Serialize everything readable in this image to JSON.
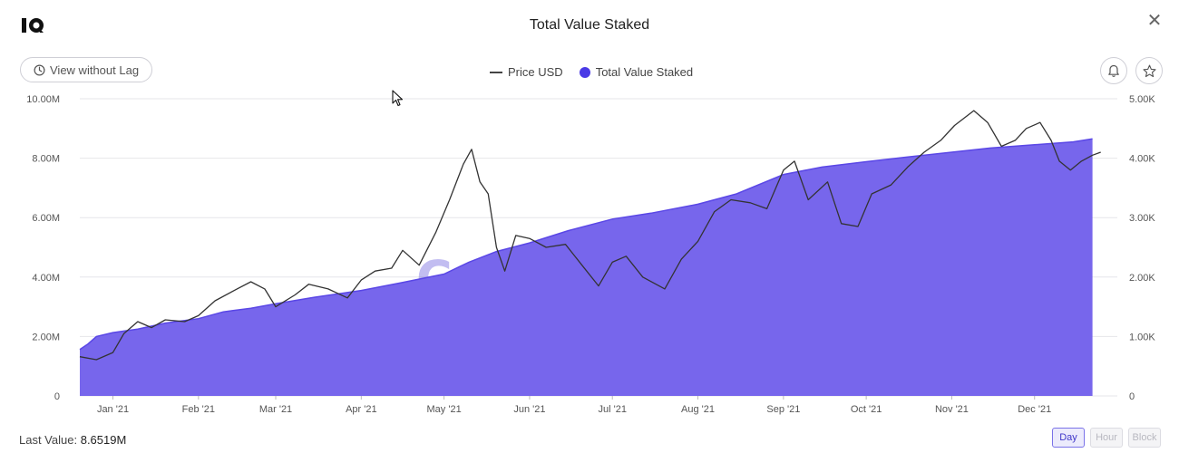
{
  "header": {
    "title": "Total Value Staked",
    "close_symbol": "✕"
  },
  "toolbar": {
    "lag_button": "View without Lag"
  },
  "legend": {
    "price_label": "Price USD",
    "tvs_label": "Total Value Staked"
  },
  "footer": {
    "last_value_label": "Last Value:",
    "last_value": "8.6519M"
  },
  "granularity": [
    "Day",
    "Hour",
    "Block"
  ],
  "granularity_selected": "Day",
  "watermark": "CryptoQuant",
  "colors": {
    "area": "#7766ec",
    "area_line": "#5a47e6",
    "price_line": "#333333",
    "grid": "#e6e6ea",
    "accent": "#4a3ae6"
  },
  "icons": {
    "logo": "cryptoquant-logo-icon",
    "clock": "clock-icon",
    "bell": "bell-icon",
    "star": "star-icon",
    "close": "close-icon"
  },
  "chart_data": {
    "type": "area",
    "title": "Total Value Staked",
    "x_range": [
      "2020-12-20",
      "2021-12-31"
    ],
    "x_ticks": [
      "Jan '21",
      "Feb '21",
      "Mar '21",
      "Apr '21",
      "May '21",
      "Jun '21",
      "Jul '21",
      "Aug '21",
      "Sep '21",
      "Oct '21",
      "Nov '21",
      "Dec '21"
    ],
    "y_left": {
      "label": "Total Value Staked",
      "min": 0,
      "max": 10000000,
      "ticks": [
        "0",
        "2.00M",
        "4.00M",
        "6.00M",
        "8.00M",
        "10.00M"
      ]
    },
    "y_right": {
      "label": "Price USD",
      "min": 0,
      "max": 5000,
      "ticks": [
        "0",
        "1.00K",
        "2.00K",
        "3.00K",
        "4.00K",
        "5.00K"
      ]
    },
    "series": [
      {
        "name": "Total Value Staked",
        "type": "area",
        "axis": "left",
        "points": [
          [
            "2020-12-20",
            1560000
          ],
          [
            "2020-12-23",
            1750000
          ],
          [
            "2020-12-26",
            2000000
          ],
          [
            "2021-01-01",
            2130000
          ],
          [
            "2021-01-10",
            2250000
          ],
          [
            "2021-01-20",
            2450000
          ],
          [
            "2021-02-01",
            2600000
          ],
          [
            "2021-02-10",
            2830000
          ],
          [
            "2021-02-20",
            2950000
          ],
          [
            "2021-03-01",
            3100000
          ],
          [
            "2021-03-15",
            3320000
          ],
          [
            "2021-04-01",
            3550000
          ],
          [
            "2021-04-15",
            3800000
          ],
          [
            "2021-05-01",
            4100000
          ],
          [
            "2021-05-10",
            4500000
          ],
          [
            "2021-05-20",
            4860000
          ],
          [
            "2021-06-01",
            5150000
          ],
          [
            "2021-06-15",
            5560000
          ],
          [
            "2021-07-01",
            5950000
          ],
          [
            "2021-07-15",
            6150000
          ],
          [
            "2021-08-01",
            6450000
          ],
          [
            "2021-08-15",
            6800000
          ],
          [
            "2021-09-01",
            7450000
          ],
          [
            "2021-09-15",
            7700000
          ],
          [
            "2021-10-01",
            7880000
          ],
          [
            "2021-10-15",
            8030000
          ],
          [
            "2021-11-01",
            8200000
          ],
          [
            "2021-11-15",
            8340000
          ],
          [
            "2021-12-01",
            8450000
          ],
          [
            "2021-12-15",
            8550000
          ],
          [
            "2021-12-22",
            8650000
          ]
        ]
      },
      {
        "name": "Price USD",
        "type": "line",
        "axis": "right",
        "points": [
          [
            "2020-12-20",
            660
          ],
          [
            "2020-12-26",
            610
          ],
          [
            "2021-01-01",
            730
          ],
          [
            "2021-01-05",
            1050
          ],
          [
            "2021-01-10",
            1250
          ],
          [
            "2021-01-15",
            1150
          ],
          [
            "2021-01-20",
            1280
          ],
          [
            "2021-01-27",
            1250
          ],
          [
            "2021-02-01",
            1350
          ],
          [
            "2021-02-07",
            1600
          ],
          [
            "2021-02-15",
            1800
          ],
          [
            "2021-02-20",
            1920
          ],
          [
            "2021-02-25",
            1800
          ],
          [
            "2021-03-01",
            1500
          ],
          [
            "2021-03-08",
            1700
          ],
          [
            "2021-03-13",
            1880
          ],
          [
            "2021-03-20",
            1800
          ],
          [
            "2021-03-27",
            1650
          ],
          [
            "2021-04-01",
            1950
          ],
          [
            "2021-04-06",
            2100
          ],
          [
            "2021-04-12",
            2150
          ],
          [
            "2021-04-16",
            2450
          ],
          [
            "2021-04-22",
            2200
          ],
          [
            "2021-04-28",
            2750
          ],
          [
            "2021-05-03",
            3300
          ],
          [
            "2021-05-08",
            3900
          ],
          [
            "2021-05-11",
            4150
          ],
          [
            "2021-05-14",
            3600
          ],
          [
            "2021-05-17",
            3400
          ],
          [
            "2021-05-20",
            2500
          ],
          [
            "2021-05-23",
            2100
          ],
          [
            "2021-05-27",
            2700
          ],
          [
            "2021-06-01",
            2650
          ],
          [
            "2021-06-07",
            2500
          ],
          [
            "2021-06-14",
            2550
          ],
          [
            "2021-06-20",
            2200
          ],
          [
            "2021-06-26",
            1850
          ],
          [
            "2021-07-01",
            2250
          ],
          [
            "2021-07-06",
            2350
          ],
          [
            "2021-07-12",
            2000
          ],
          [
            "2021-07-20",
            1800
          ],
          [
            "2021-07-26",
            2300
          ],
          [
            "2021-08-01",
            2600
          ],
          [
            "2021-08-07",
            3100
          ],
          [
            "2021-08-13",
            3300
          ],
          [
            "2021-08-20",
            3250
          ],
          [
            "2021-08-26",
            3150
          ],
          [
            "2021-09-01",
            3800
          ],
          [
            "2021-09-05",
            3950
          ],
          [
            "2021-09-10",
            3300
          ],
          [
            "2021-09-17",
            3600
          ],
          [
            "2021-09-22",
            2900
          ],
          [
            "2021-09-28",
            2850
          ],
          [
            "2021-10-03",
            3400
          ],
          [
            "2021-10-10",
            3550
          ],
          [
            "2021-10-16",
            3850
          ],
          [
            "2021-10-22",
            4100
          ],
          [
            "2021-10-28",
            4300
          ],
          [
            "2021-11-02",
            4550
          ],
          [
            "2021-11-09",
            4800
          ],
          [
            "2021-11-14",
            4600
          ],
          [
            "2021-11-19",
            4200
          ],
          [
            "2021-11-24",
            4300
          ],
          [
            "2021-11-28",
            4500
          ],
          [
            "2021-12-03",
            4600
          ],
          [
            "2021-12-07",
            4300
          ],
          [
            "2021-12-10",
            3950
          ],
          [
            "2021-12-14",
            3800
          ],
          [
            "2021-12-18",
            3950
          ],
          [
            "2021-12-22",
            4050
          ],
          [
            "2021-12-25",
            4100
          ]
        ]
      }
    ]
  }
}
